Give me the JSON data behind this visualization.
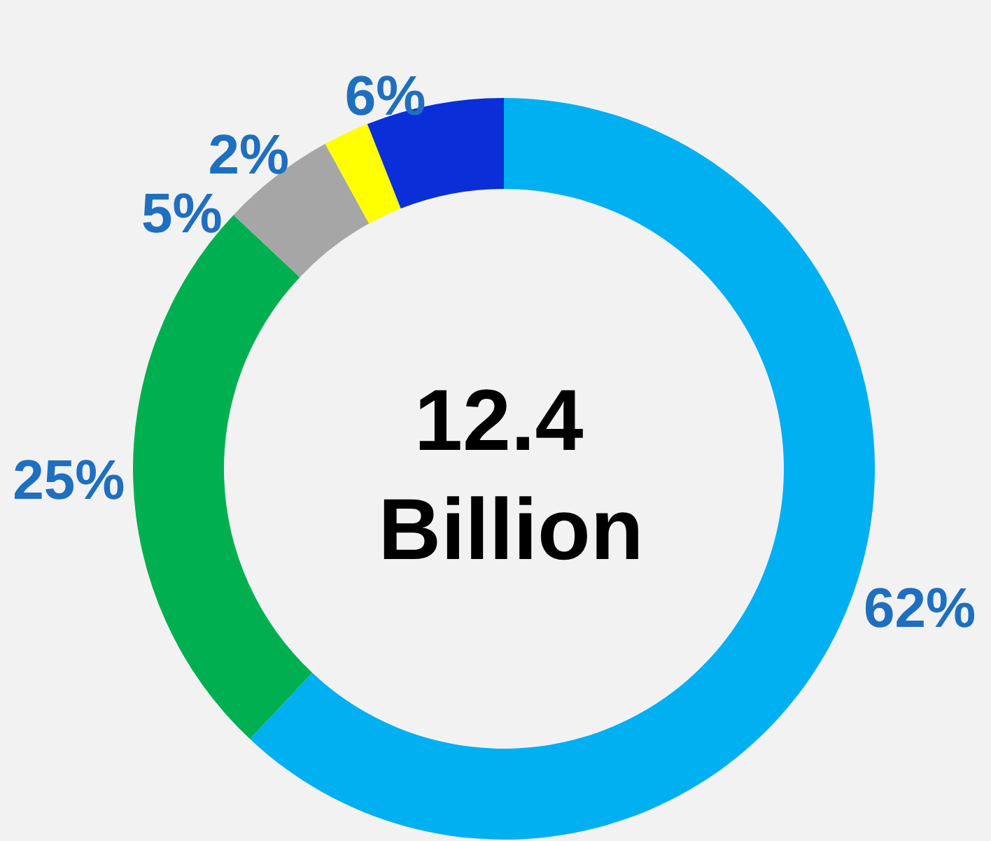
{
  "chart_data": {
    "type": "donut",
    "title": "12.4 Billion",
    "categories": [
      null,
      null,
      null,
      null,
      null
    ],
    "values": [
      62,
      25,
      5,
      2,
      6
    ],
    "value_labels": [
      "62%",
      "25%",
      "5%",
      "2%",
      "6%"
    ],
    "colors": [
      "#00b0f0",
      "#00b050",
      "#a6a6a6",
      "#ffff00",
      "#0a2fd8"
    ]
  }
}
